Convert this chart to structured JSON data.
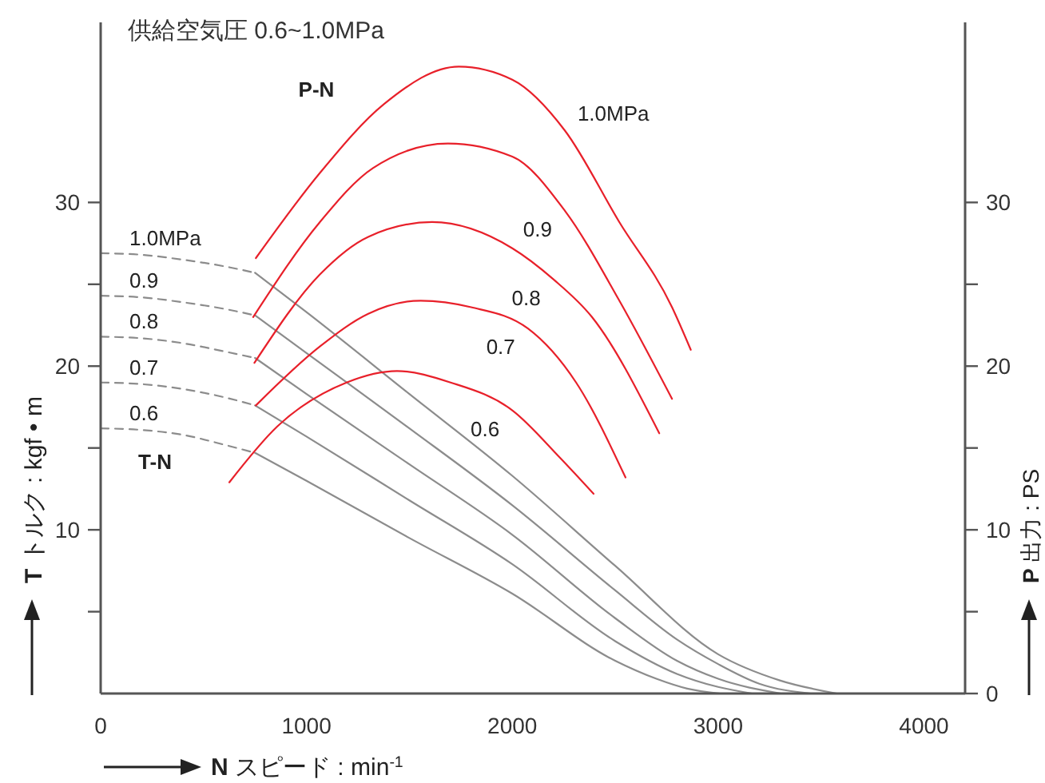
{
  "chart_data": {
    "type": "line",
    "title": "供給空気圧 0.6~1.0MPa",
    "xlabel": "N スピード : min$^{-1}$",
    "ylabel": "T トルク : kgf • m",
    "y2label": "P 出力 : PS",
    "xlim": [
      0,
      4200
    ],
    "xticks": [
      0,
      1000,
      2000,
      3000,
      4000
    ],
    "ylim": [
      0,
      41
    ],
    "yticks": [
      {
        "value": 5,
        "label": null
      },
      10,
      {
        "value": 15,
        "label": null
      },
      20,
      {
        "value": 25,
        "label": null
      },
      30
    ],
    "y2lim": [
      0,
      41
    ],
    "y2ticks": [
      0,
      {
        "value": 5,
        "label": null
      },
      10,
      {
        "value": 15,
        "label": null
      },
      20,
      {
        "value": 25,
        "label": null
      },
      30
    ],
    "grid": false,
    "legend": false,
    "marker": "none",
    "annotations": [
      "P-N",
      "T-N"
    ],
    "series": [
      {
        "name": "1.0MPa",
        "color": "#8c8c8c",
        "line_style": "dashed",
        "x": [
          0,
          200,
          400,
          600,
          750
        ],
        "values": [
          26.9,
          26.8,
          26.5,
          26.1,
          25.7
        ]
      },
      {
        "color": "#8c8c8c",
        "line_style": "solid",
        "x": [
          750,
          1000,
          1500,
          2000,
          2500,
          3000,
          3300,
          3577
        ],
        "values": [
          25.7,
          23.3,
          18.3,
          13.3,
          7.8,
          2.4,
          0.8,
          0
        ]
      },
      {
        "name": "0.9",
        "color": "#8c8c8c",
        "line_style": "dashed",
        "x": [
          0,
          200,
          400,
          600,
          750
        ],
        "values": [
          24.3,
          24.2,
          23.9,
          23.5,
          23.1
        ]
      },
      {
        "color": "#8c8c8c",
        "line_style": "solid",
        "x": [
          750,
          1000,
          1500,
          2000,
          2500,
          2800,
          3000,
          3200,
          3450
        ],
        "values": [
          23.1,
          20.8,
          16.2,
          11.5,
          6.3,
          3.3,
          1.8,
          0.6,
          0
        ]
      },
      {
        "name": "0.8",
        "color": "#8c8c8c",
        "line_style": "dashed",
        "x": [
          0,
          200,
          400,
          600,
          750
        ],
        "values": [
          21.8,
          21.7,
          21.4,
          20.9,
          20.5
        ]
      },
      {
        "color": "#8c8c8c",
        "line_style": "solid",
        "x": [
          750,
          1000,
          1500,
          2000,
          2500,
          2800,
          3000,
          3305
        ],
        "values": [
          20.5,
          18.3,
          14.0,
          9.7,
          4.6,
          2.0,
          0.9,
          0
        ]
      },
      {
        "name": "0.7",
        "color": "#8c8c8c",
        "line_style": "dashed",
        "x": [
          0,
          200,
          400,
          600,
          750
        ],
        "values": [
          19.0,
          18.9,
          18.6,
          18.1,
          17.6
        ]
      },
      {
        "color": "#8c8c8c",
        "line_style": "solid",
        "x": [
          750,
          1000,
          1500,
          2000,
          2500,
          2800,
          3000,
          3165
        ],
        "values": [
          17.6,
          15.7,
          11.8,
          7.9,
          3.2,
          1.2,
          0.4,
          0
        ]
      },
      {
        "name": "0.6",
        "color": "#8c8c8c",
        "line_style": "dashed",
        "x": [
          0,
          200,
          400,
          600,
          750
        ],
        "values": [
          16.2,
          16.1,
          15.8,
          15.2,
          14.7
        ]
      },
      {
        "color": "#8c8c8c",
        "line_style": "solid",
        "x": [
          750,
          1000,
          1500,
          2000,
          2500,
          2700,
          2850,
          3010
        ],
        "values": [
          14.7,
          13.0,
          9.5,
          6.1,
          2.0,
          0.9,
          0.3,
          0
        ]
      },
      {
        "name": "1.0MPa",
        "color": "#e8202a",
        "line_style": "solid",
        "axis": "y2",
        "x": [
          754,
          1065,
          1376,
          1740,
          2000,
          2255,
          2520,
          2776,
          2867
        ],
        "values": [
          26.6,
          31.8,
          36.0,
          38.3,
          37.5,
          34.4,
          28.8,
          23.6,
          21.0
        ]
      },
      {
        "name": "0.9",
        "color": "#e8202a",
        "line_style": "solid",
        "axis": "y2",
        "x": [
          741,
          1065,
          1323,
          1687,
          2000,
          2255,
          2520,
          2776
        ],
        "values": [
          23.0,
          28.8,
          32.1,
          33.6,
          32.8,
          29.5,
          24.0,
          18.0
        ]
      },
      {
        "name": "0.8",
        "color": "#e8202a",
        "line_style": "solid",
        "axis": "y2",
        "x": [
          747,
          1065,
          1300,
          1610,
          2000,
          2200,
          2387,
          2714
        ],
        "values": [
          20.2,
          25.6,
          27.9,
          28.8,
          27.2,
          25.3,
          23.0,
          15.9
        ]
      },
      {
        "name": "0.7",
        "color": "#e8202a",
        "line_style": "solid",
        "axis": "y2",
        "x": [
          754,
          1065,
          1300,
          1555,
          1800,
          2076,
          2310,
          2550
        ],
        "values": [
          17.6,
          21.2,
          23.2,
          24.0,
          23.6,
          22.3,
          19.0,
          13.2
        ]
      },
      {
        "name": "0.6",
        "color": "#e8202a",
        "line_style": "solid",
        "axis": "y2",
        "x": [
          625,
          857,
          1195,
          1440,
          1700,
          2000,
          2232,
          2395
        ],
        "values": [
          12.9,
          16.3,
          19.0,
          19.7,
          19.0,
          17.3,
          14.4,
          12.2
        ]
      }
    ]
  }
}
